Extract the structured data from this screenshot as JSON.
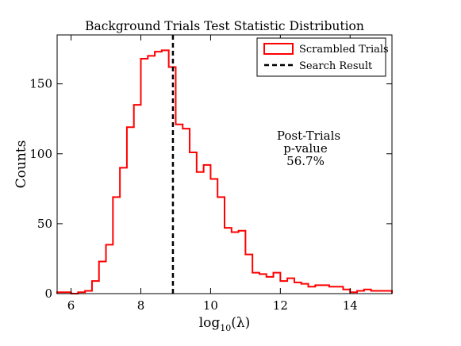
{
  "chart_data": {
    "type": "histogram",
    "title": "Background Trials Test Statistic Distribution",
    "xlabel": "log₁₀(λ)",
    "xlabel_base": "log",
    "xlabel_sub": "10",
    "xlabel_arg": "(λ)",
    "ylabel": "Counts",
    "xlim": [
      5.6,
      15.2
    ],
    "ylim": [
      0,
      185
    ],
    "xticks": [
      6,
      8,
      10,
      12,
      14
    ],
    "yticks": [
      0,
      50,
      100,
      150
    ],
    "grid": false,
    "legend_position": "top-right",
    "series": [
      {
        "name": "Scrambled Trials",
        "color": "#ff0000",
        "bin_edges": [
          5.6,
          5.8,
          6.0,
          6.2,
          6.4,
          6.6,
          6.8,
          7.0,
          7.2,
          7.4,
          7.6,
          7.8,
          8.0,
          8.2,
          8.4,
          8.6,
          8.8,
          9.0,
          9.2,
          9.4,
          9.6,
          9.8,
          10.0,
          10.2,
          10.4,
          10.6,
          10.8,
          11.0,
          11.2,
          11.4,
          11.6,
          11.8,
          12.0,
          12.2,
          12.4,
          12.6,
          12.8,
          13.0,
          13.2,
          13.4,
          13.6,
          13.8,
          14.0,
          14.2,
          14.4,
          14.6,
          14.8,
          15.0,
          15.2
        ],
        "counts": [
          1,
          1,
          0,
          1,
          2,
          9,
          23,
          35,
          69,
          90,
          119,
          135,
          168,
          170,
          173,
          174,
          162,
          121,
          118,
          101,
          87,
          92,
          82,
          69,
          47,
          44,
          45,
          28,
          15,
          14,
          12,
          15,
          9,
          11,
          8,
          7,
          5,
          6,
          6,
          5,
          5,
          3,
          1,
          2,
          3,
          2,
          2,
          2
        ]
      }
    ],
    "reference_lines": [
      {
        "name": "Search Result",
        "x": 8.92,
        "style": "dashed",
        "color": "#000000"
      }
    ],
    "annotation": {
      "lines": [
        "Post-Trials",
        "p-value",
        "56.7%"
      ]
    }
  }
}
